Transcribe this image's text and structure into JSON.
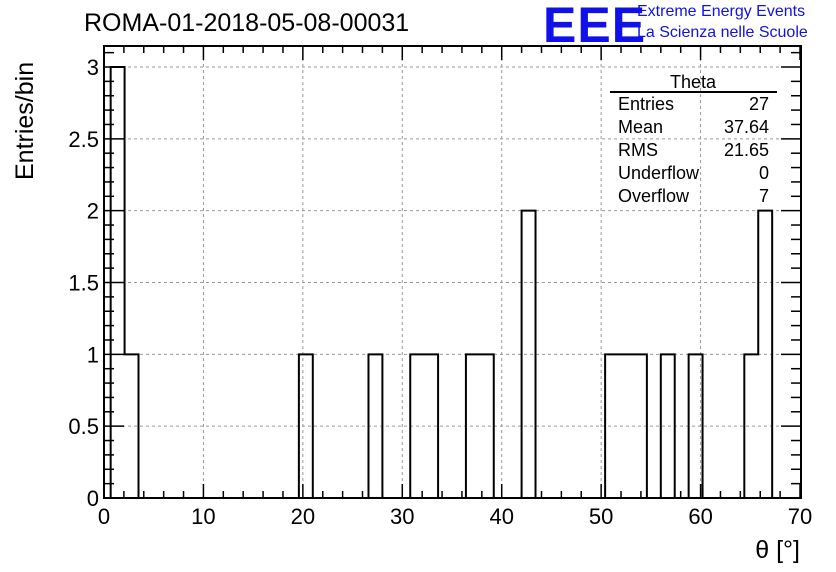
{
  "header": {
    "run_title": "ROMA-01-2018-05-08-00031",
    "logo_text": "EEE",
    "org_line1": "Extreme Energy Events",
    "org_line2": "La Scienza nelle Scuole"
  },
  "stats_box": {
    "title": "Theta",
    "rows": [
      {
        "label": "Entries",
        "value": "27"
      },
      {
        "label": "Mean",
        "value": "37.64"
      },
      {
        "label": "RMS",
        "value": "21.65"
      },
      {
        "label": "Underflow",
        "value": "0"
      },
      {
        "label": "Overflow",
        "value": "7"
      }
    ]
  },
  "chart_data": {
    "type": "histogram",
    "xlabel": "θ [°]",
    "ylabel": "Entries/bin",
    "xlim": [
      0,
      70
    ],
    "ylim": [
      0,
      3.2
    ],
    "grid": true,
    "x_ticks": [
      0,
      10,
      20,
      30,
      40,
      50,
      60,
      70
    ],
    "x_tick_labels": [
      "0",
      "10",
      "20",
      "30",
      "40",
      "50",
      "60",
      "70"
    ],
    "y_ticks": [
      0,
      0.5,
      1,
      1.5,
      2,
      2.5,
      3
    ],
    "y_tick_labels": [
      "0",
      "0.5",
      "1",
      "1.5",
      "2",
      "2.5",
      "3"
    ],
    "bins": [
      {
        "x0": 0.67,
        "x1": 2.07,
        "count": 3
      },
      {
        "x0": 2.07,
        "x1": 3.47,
        "count": 1
      },
      {
        "x0": 19.6,
        "x1": 21.0,
        "count": 1
      },
      {
        "x0": 26.6,
        "x1": 28.0,
        "count": 1
      },
      {
        "x0": 30.8,
        "x1": 32.2,
        "count": 1
      },
      {
        "x0": 32.2,
        "x1": 33.6,
        "count": 1
      },
      {
        "x0": 36.4,
        "x1": 37.8,
        "count": 1
      },
      {
        "x0": 37.8,
        "x1": 39.2,
        "count": 1
      },
      {
        "x0": 42.0,
        "x1": 43.4,
        "count": 2
      },
      {
        "x0": 50.4,
        "x1": 51.8,
        "count": 1
      },
      {
        "x0": 51.8,
        "x1": 53.2,
        "count": 1
      },
      {
        "x0": 53.2,
        "x1": 54.6,
        "count": 1
      },
      {
        "x0": 56.0,
        "x1": 57.4,
        "count": 1
      },
      {
        "x0": 58.8,
        "x1": 60.2,
        "count": 1
      },
      {
        "x0": 64.4,
        "x1": 65.8,
        "count": 1
      },
      {
        "x0": 65.8,
        "x1": 67.2,
        "count": 2
      }
    ]
  }
}
